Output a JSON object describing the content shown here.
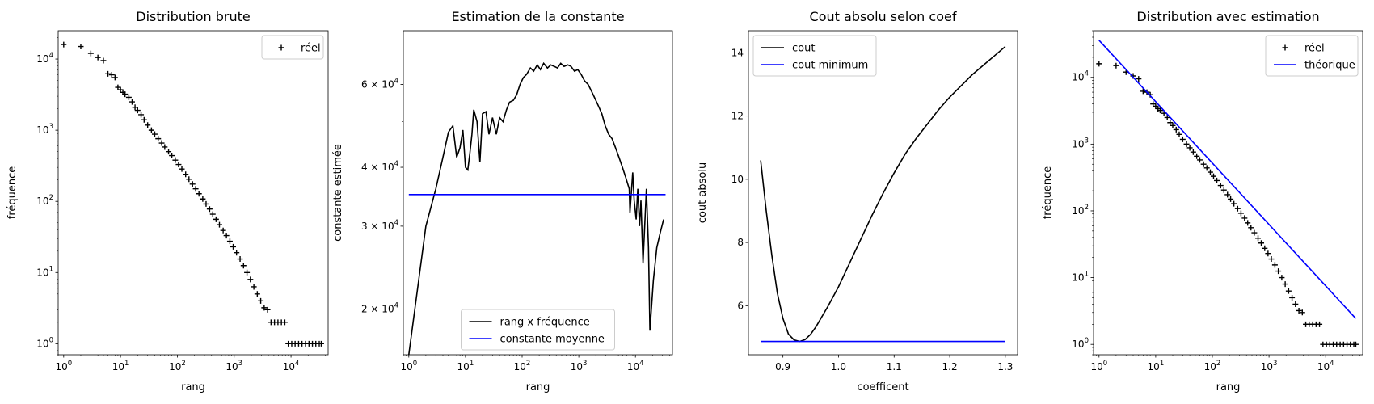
{
  "chart_data": [
    {
      "type": "scatter",
      "title": "Distribution brute",
      "xlabel": "rang",
      "ylabel": "fréquence",
      "xscale": "log",
      "yscale": "log",
      "xlim": [
        0.8,
        45000
      ],
      "ylim": [
        0.7,
        25000
      ],
      "xticks": [
        {
          "value": 1,
          "base": "10",
          "exp": "0"
        },
        {
          "value": 10,
          "base": "10",
          "exp": "1"
        },
        {
          "value": 100,
          "base": "10",
          "exp": "2"
        },
        {
          "value": 1000,
          "base": "10",
          "exp": "3"
        },
        {
          "value": 10000,
          "base": "10",
          "exp": "4"
        }
      ],
      "yticks": [
        {
          "value": 1,
          "base": "10",
          "exp": "0"
        },
        {
          "value": 10,
          "base": "10",
          "exp": "1"
        },
        {
          "value": 100,
          "base": "10",
          "exp": "2"
        },
        {
          "value": 1000,
          "base": "10",
          "exp": "3"
        },
        {
          "value": 10000,
          "base": "10",
          "exp": "4"
        }
      ],
      "legend": {
        "position": "upper right"
      },
      "series": [
        {
          "name": "réel",
          "marker": "+",
          "color": "#000000",
          "x": [
            1,
            2,
            3,
            4,
            5,
            6,
            7,
            8,
            9,
            10,
            11,
            12,
            14,
            16,
            18,
            20,
            23,
            26,
            30,
            35,
            40,
            46,
            53,
            60,
            70,
            80,
            92,
            105,
            120,
            140,
            160,
            185,
            210,
            240,
            280,
            320,
            370,
            420,
            480,
            550,
            640,
            730,
            840,
            960,
            1100,
            1270,
            1460,
            1680,
            1930,
            2220,
            2550,
            2930,
            3370,
            3870,
            4450,
            5120,
            5890,
            6770,
            7780,
            8950,
            10300,
            11800,
            13600,
            15600,
            18000,
            20700,
            23800,
            27300,
            31400,
            34000
          ],
          "y": [
            16000,
            15000,
            12000,
            10500,
            9500,
            6200,
            6000,
            5500,
            4000,
            3700,
            3400,
            3200,
            2900,
            2500,
            2100,
            1900,
            1650,
            1400,
            1180,
            1000,
            880,
            760,
            660,
            580,
            500,
            440,
            380,
            330,
            285,
            240,
            205,
            175,
            150,
            128,
            108,
            92,
            78,
            66,
            56,
            47,
            39,
            33,
            27.5,
            23,
            19,
            15.5,
            12.5,
            10,
            8,
            6.3,
            5,
            4,
            3.2,
            3,
            2,
            2,
            2,
            2,
            2,
            1,
            1,
            1,
            1,
            1,
            1,
            1,
            1,
            1,
            1,
            1
          ]
        }
      ]
    },
    {
      "type": "line",
      "title": "Estimation de la constante",
      "xlabel": "rang",
      "ylabel": "constante estimée",
      "xscale": "log",
      "yscale": "log",
      "xlim": [
        0.8,
        45000
      ],
      "ylim": [
        16000,
        78000
      ],
      "xticks": [
        {
          "value": 1,
          "base": "10",
          "exp": "0"
        },
        {
          "value": 10,
          "base": "10",
          "exp": "1"
        },
        {
          "value": 100,
          "base": "10",
          "exp": "2"
        },
        {
          "value": 1000,
          "base": "10",
          "exp": "3"
        },
        {
          "value": 10000,
          "base": "10",
          "exp": "4"
        }
      ],
      "yticks": [
        {
          "value": 20000,
          "mant": "2 × 10",
          "exp": "4"
        },
        {
          "value": 30000,
          "mant": "3 × 10",
          "exp": "4"
        },
        {
          "value": 40000,
          "mant": "4 × 10",
          "exp": "4"
        },
        {
          "value": 60000,
          "mant": "6 × 10",
          "exp": "4"
        }
      ],
      "legend": {
        "position": "lower center"
      },
      "series": [
        {
          "name": "rang x fréquence",
          "color": "#000000",
          "x": [
            1,
            2,
            3,
            4,
            5,
            6,
            7,
            8,
            9,
            10,
            11,
            12,
            13,
            14,
            16,
            18,
            20,
            23,
            26,
            30,
            35,
            40,
            46,
            53,
            60,
            70,
            80,
            92,
            105,
            120,
            140,
            160,
            185,
            210,
            240,
            280,
            320,
            370,
            420,
            480,
            550,
            640,
            730,
            840,
            960,
            1100,
            1270,
            1460,
            1680,
            1930,
            2220,
            2550,
            2930,
            3370,
            3870,
            4450,
            5120,
            5890,
            6770,
            7780,
            8000,
            8950,
            9500,
            10300,
            11000,
            11800,
            12500,
            13600,
            15600,
            17000,
            18000,
            20700,
            23800,
            27300,
            31400
          ],
          "y": [
            16000,
            30000,
            36000,
            42000,
            47500,
            49000,
            42000,
            44000,
            48000,
            40000,
            39500,
            43000,
            47000,
            53000,
            50000,
            41000,
            52000,
            52500,
            47000,
            51000,
            47000,
            51000,
            50000,
            53000,
            55000,
            55500,
            57000,
            60000,
            62000,
            63000,
            65000,
            64000,
            66000,
            64500,
            66500,
            65000,
            66000,
            65500,
            65000,
            66500,
            65500,
            66000,
            65500,
            64000,
            64500,
            63000,
            61000,
            60000,
            58000,
            56000,
            54000,
            52000,
            49000,
            47000,
            46000,
            44000,
            42000,
            40000,
            38000,
            36000,
            32000,
            39000,
            34000,
            31000,
            36000,
            30000,
            34000,
            25000,
            36000,
            27000,
            18000,
            23000,
            27000,
            29000,
            31000
          ]
        },
        {
          "name": "constante moyenne",
          "color": "#0000ff",
          "x": [
            1,
            34000
          ],
          "y": [
            35000,
            35000
          ]
        }
      ]
    },
    {
      "type": "line",
      "title": "Cout absolu selon coef",
      "xlabel": "coefficent",
      "ylabel": "cout absolu",
      "xlim": [
        0.838,
        1.322
      ],
      "ylim": [
        4.45,
        14.7
      ],
      "xticks": [
        {
          "value": 0.9,
          "label": "0.9"
        },
        {
          "value": 1.0,
          "label": "1.0"
        },
        {
          "value": 1.1,
          "label": "1.1"
        },
        {
          "value": 1.2,
          "label": "1.2"
        },
        {
          "value": 1.3,
          "label": "1.3"
        }
      ],
      "yticks": [
        {
          "value": 6,
          "label": "6"
        },
        {
          "value": 8,
          "label": "8"
        },
        {
          "value": 10,
          "label": "10"
        },
        {
          "value": 12,
          "label": "12"
        },
        {
          "value": 14,
          "label": "14"
        }
      ],
      "legend": {
        "position": "upper left"
      },
      "series": [
        {
          "name": "cout",
          "color": "#000000",
          "x": [
            0.86,
            0.87,
            0.88,
            0.89,
            0.9,
            0.91,
            0.92,
            0.93,
            0.94,
            0.95,
            0.96,
            0.98,
            1.0,
            1.02,
            1.04,
            1.06,
            1.08,
            1.1,
            1.12,
            1.14,
            1.16,
            1.18,
            1.2,
            1.22,
            1.24,
            1.26,
            1.28,
            1.3
          ],
          "y": [
            10.6,
            9.0,
            7.6,
            6.4,
            5.6,
            5.1,
            4.92,
            4.87,
            4.93,
            5.1,
            5.35,
            5.95,
            6.6,
            7.35,
            8.1,
            8.85,
            9.55,
            10.2,
            10.8,
            11.3,
            11.75,
            12.2,
            12.6,
            12.95,
            13.3,
            13.6,
            13.9,
            14.2
          ]
        },
        {
          "name": "cout minimum",
          "color": "#0000ff",
          "x": [
            0.86,
            1.3
          ],
          "y": [
            4.87,
            4.87
          ]
        }
      ]
    },
    {
      "type": "scatter",
      "title": "Distribution avec estimation",
      "xlabel": "rang",
      "ylabel": "fréquence",
      "xscale": "log",
      "yscale": "log",
      "xlim": [
        0.8,
        45000
      ],
      "ylim": [
        0.7,
        50000
      ],
      "xticks": [
        {
          "value": 1,
          "base": "10",
          "exp": "0"
        },
        {
          "value": 10,
          "base": "10",
          "exp": "1"
        },
        {
          "value": 100,
          "base": "10",
          "exp": "2"
        },
        {
          "value": 1000,
          "base": "10",
          "exp": "3"
        },
        {
          "value": 10000,
          "base": "10",
          "exp": "4"
        }
      ],
      "yticks": [
        {
          "value": 1,
          "base": "10",
          "exp": "0"
        },
        {
          "value": 10,
          "base": "10",
          "exp": "1"
        },
        {
          "value": 100,
          "base": "10",
          "exp": "2"
        },
        {
          "value": 1000,
          "base": "10",
          "exp": "3"
        },
        {
          "value": 10000,
          "base": "10",
          "exp": "4"
        }
      ],
      "legend": {
        "position": "upper right"
      },
      "series": [
        {
          "name": "réel",
          "marker": "+",
          "color": "#000000",
          "x": [
            1,
            2,
            3,
            4,
            5,
            6,
            7,
            8,
            9,
            10,
            11,
            12,
            14,
            16,
            18,
            20,
            23,
            26,
            30,
            35,
            40,
            46,
            53,
            60,
            70,
            80,
            92,
            105,
            120,
            140,
            160,
            185,
            210,
            240,
            280,
            320,
            370,
            420,
            480,
            550,
            640,
            730,
            840,
            960,
            1100,
            1270,
            1460,
            1680,
            1930,
            2220,
            2550,
            2930,
            3370,
            3870,
            4450,
            5120,
            5890,
            6770,
            7780,
            8950,
            10300,
            11800,
            13600,
            15600,
            18000,
            20700,
            23800,
            27300,
            31400,
            34000
          ],
          "y": [
            16000,
            15000,
            12000,
            10500,
            9500,
            6200,
            6000,
            5500,
            4000,
            3700,
            3400,
            3200,
            2900,
            2500,
            2100,
            1900,
            1650,
            1400,
            1180,
            1000,
            880,
            760,
            660,
            580,
            500,
            440,
            380,
            330,
            285,
            240,
            205,
            175,
            150,
            128,
            108,
            92,
            78,
            66,
            56,
            47,
            39,
            33,
            27.5,
            23,
            19,
            15.5,
            12.5,
            10,
            8,
            6.3,
            5,
            4,
            3.2,
            3,
            2,
            2,
            2,
            2,
            2,
            1,
            1,
            1,
            1,
            1,
            1,
            1,
            1,
            1,
            1,
            1
          ]
        },
        {
          "name": "théorique",
          "color": "#0000ff",
          "x": [
            1,
            34000
          ],
          "y": [
            36000,
            2.44
          ]
        }
      ]
    }
  ]
}
